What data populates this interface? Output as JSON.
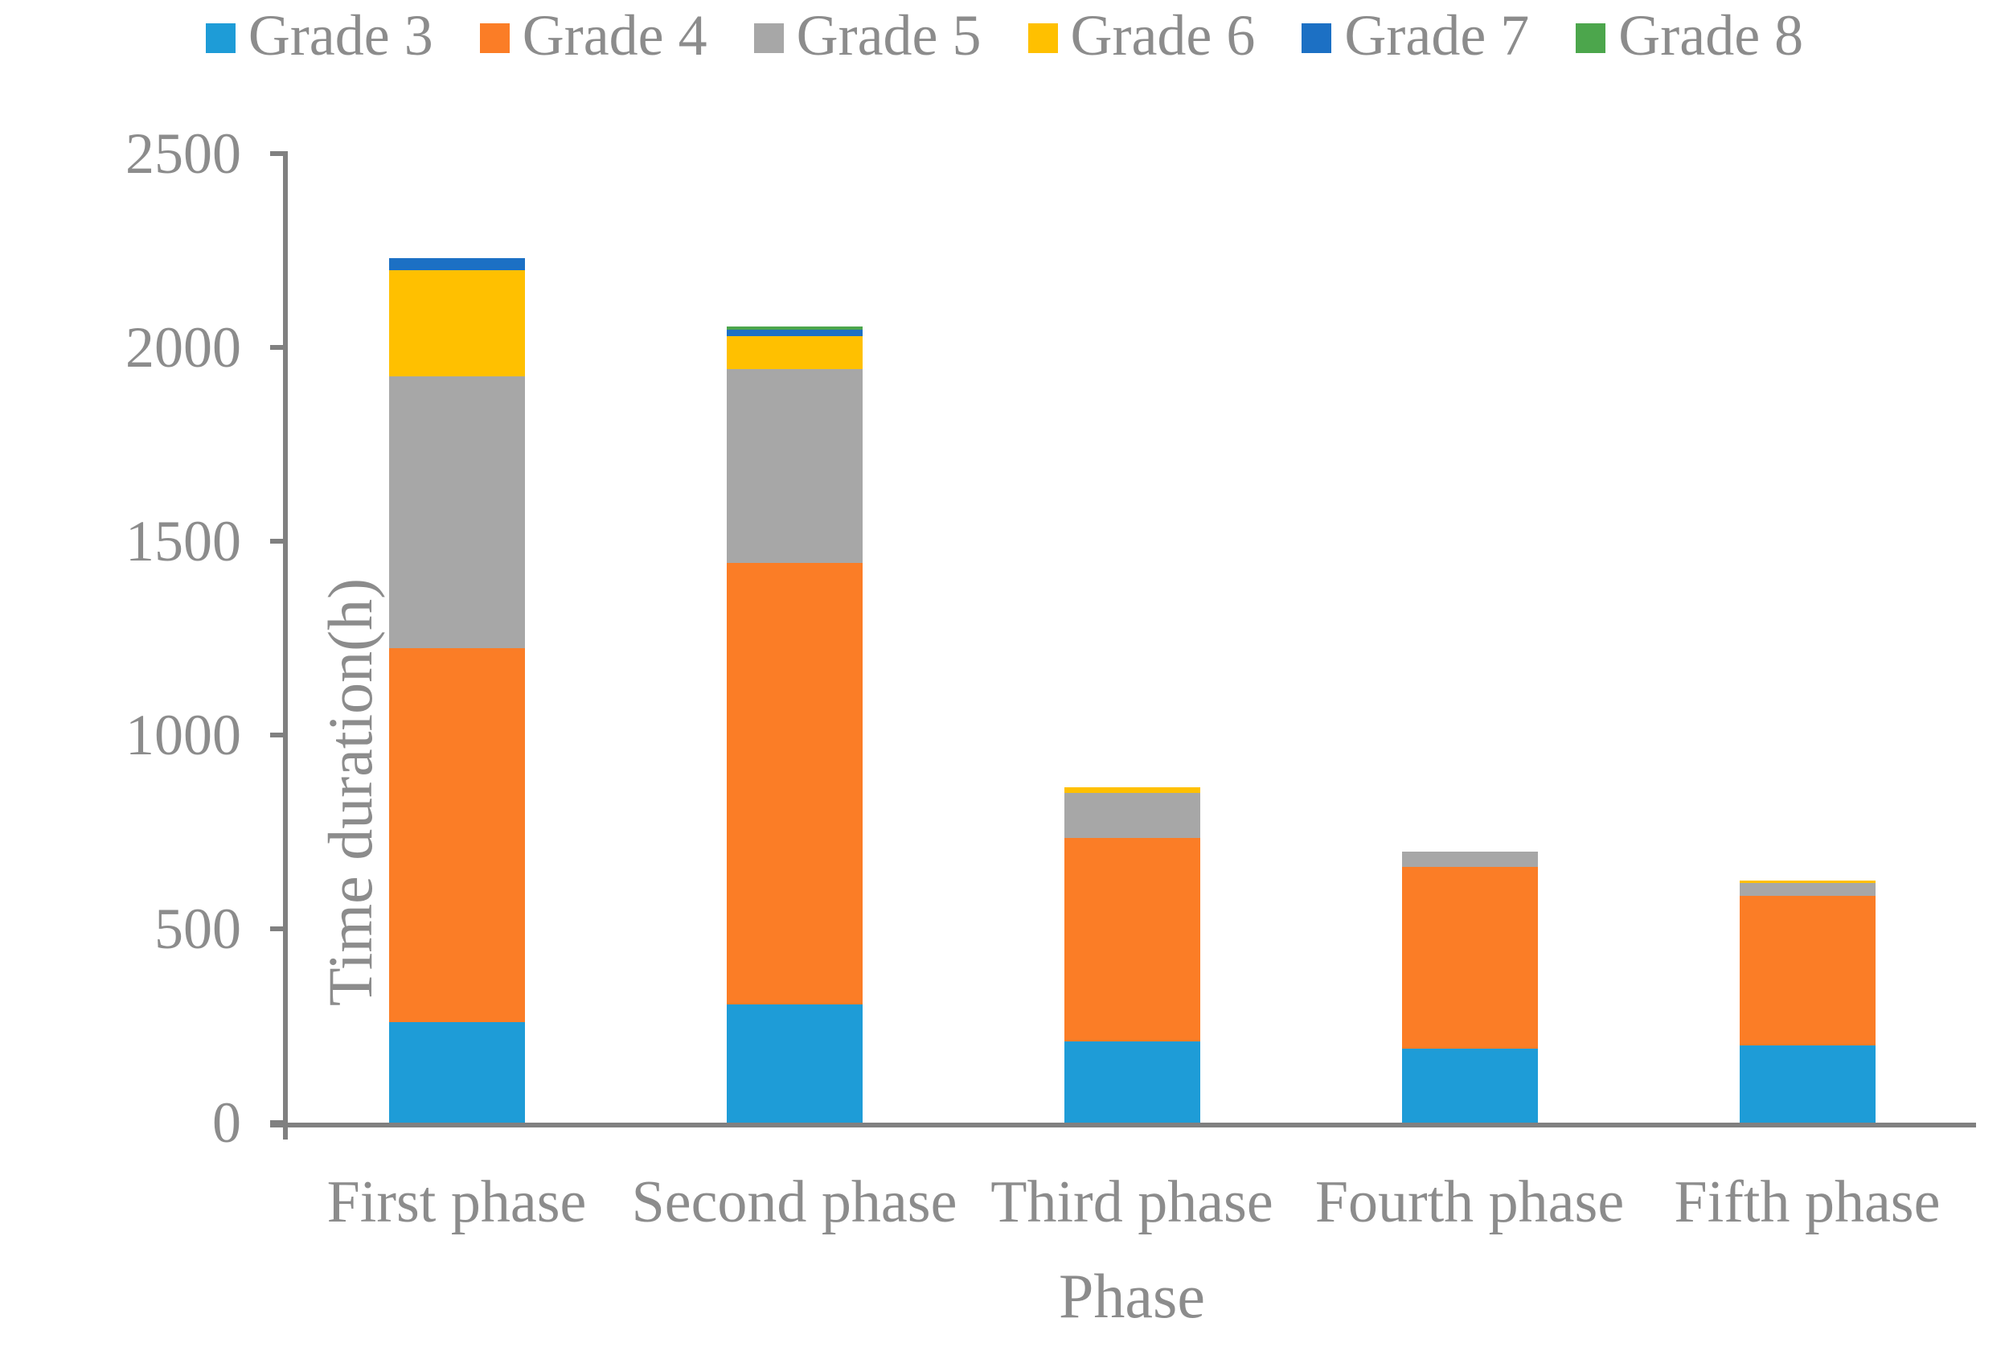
{
  "chart_data": {
    "type": "bar",
    "stacked": true,
    "title": "",
    "xlabel": "Phase",
    "ylabel": "Time duration(h)",
    "categories": [
      "First phase",
      "Second phase",
      "Third phase",
      "Fourth phase",
      "Fifth phase"
    ],
    "series": [
      {
        "name": "Grade 3",
        "color": "#1E9CD7",
        "values": [
          260,
          305,
          210,
          190,
          200
        ]
      },
      {
        "name": "Grade 4",
        "color": "#FB7D26",
        "values": [
          965,
          1140,
          525,
          470,
          385
        ]
      },
      {
        "name": "Grade 5",
        "color": "#A7A7A7",
        "values": [
          700,
          500,
          115,
          40,
          33
        ]
      },
      {
        "name": "Grade 6",
        "color": "#FFC000",
        "values": [
          275,
          85,
          15,
          0,
          7
        ]
      },
      {
        "name": "Grade 7",
        "color": "#1C70C4",
        "values": [
          30,
          15,
          0,
          0,
          0
        ]
      },
      {
        "name": "Grade 8",
        "color": "#4CA64C",
        "values": [
          0,
          8,
          0,
          0,
          0
        ]
      }
    ],
    "stack_totals": [
      2230,
      2053,
      865,
      700,
      625
    ],
    "ylim": [
      0,
      2500
    ],
    "ytick_step": 500,
    "ytick_labels": [
      "0",
      "500",
      "1000",
      "1500",
      "2000",
      "2500"
    ],
    "legend_position": "top",
    "grid": false
  },
  "style": {
    "text_color": "#8C8C8C",
    "axis_color": "#808080"
  }
}
